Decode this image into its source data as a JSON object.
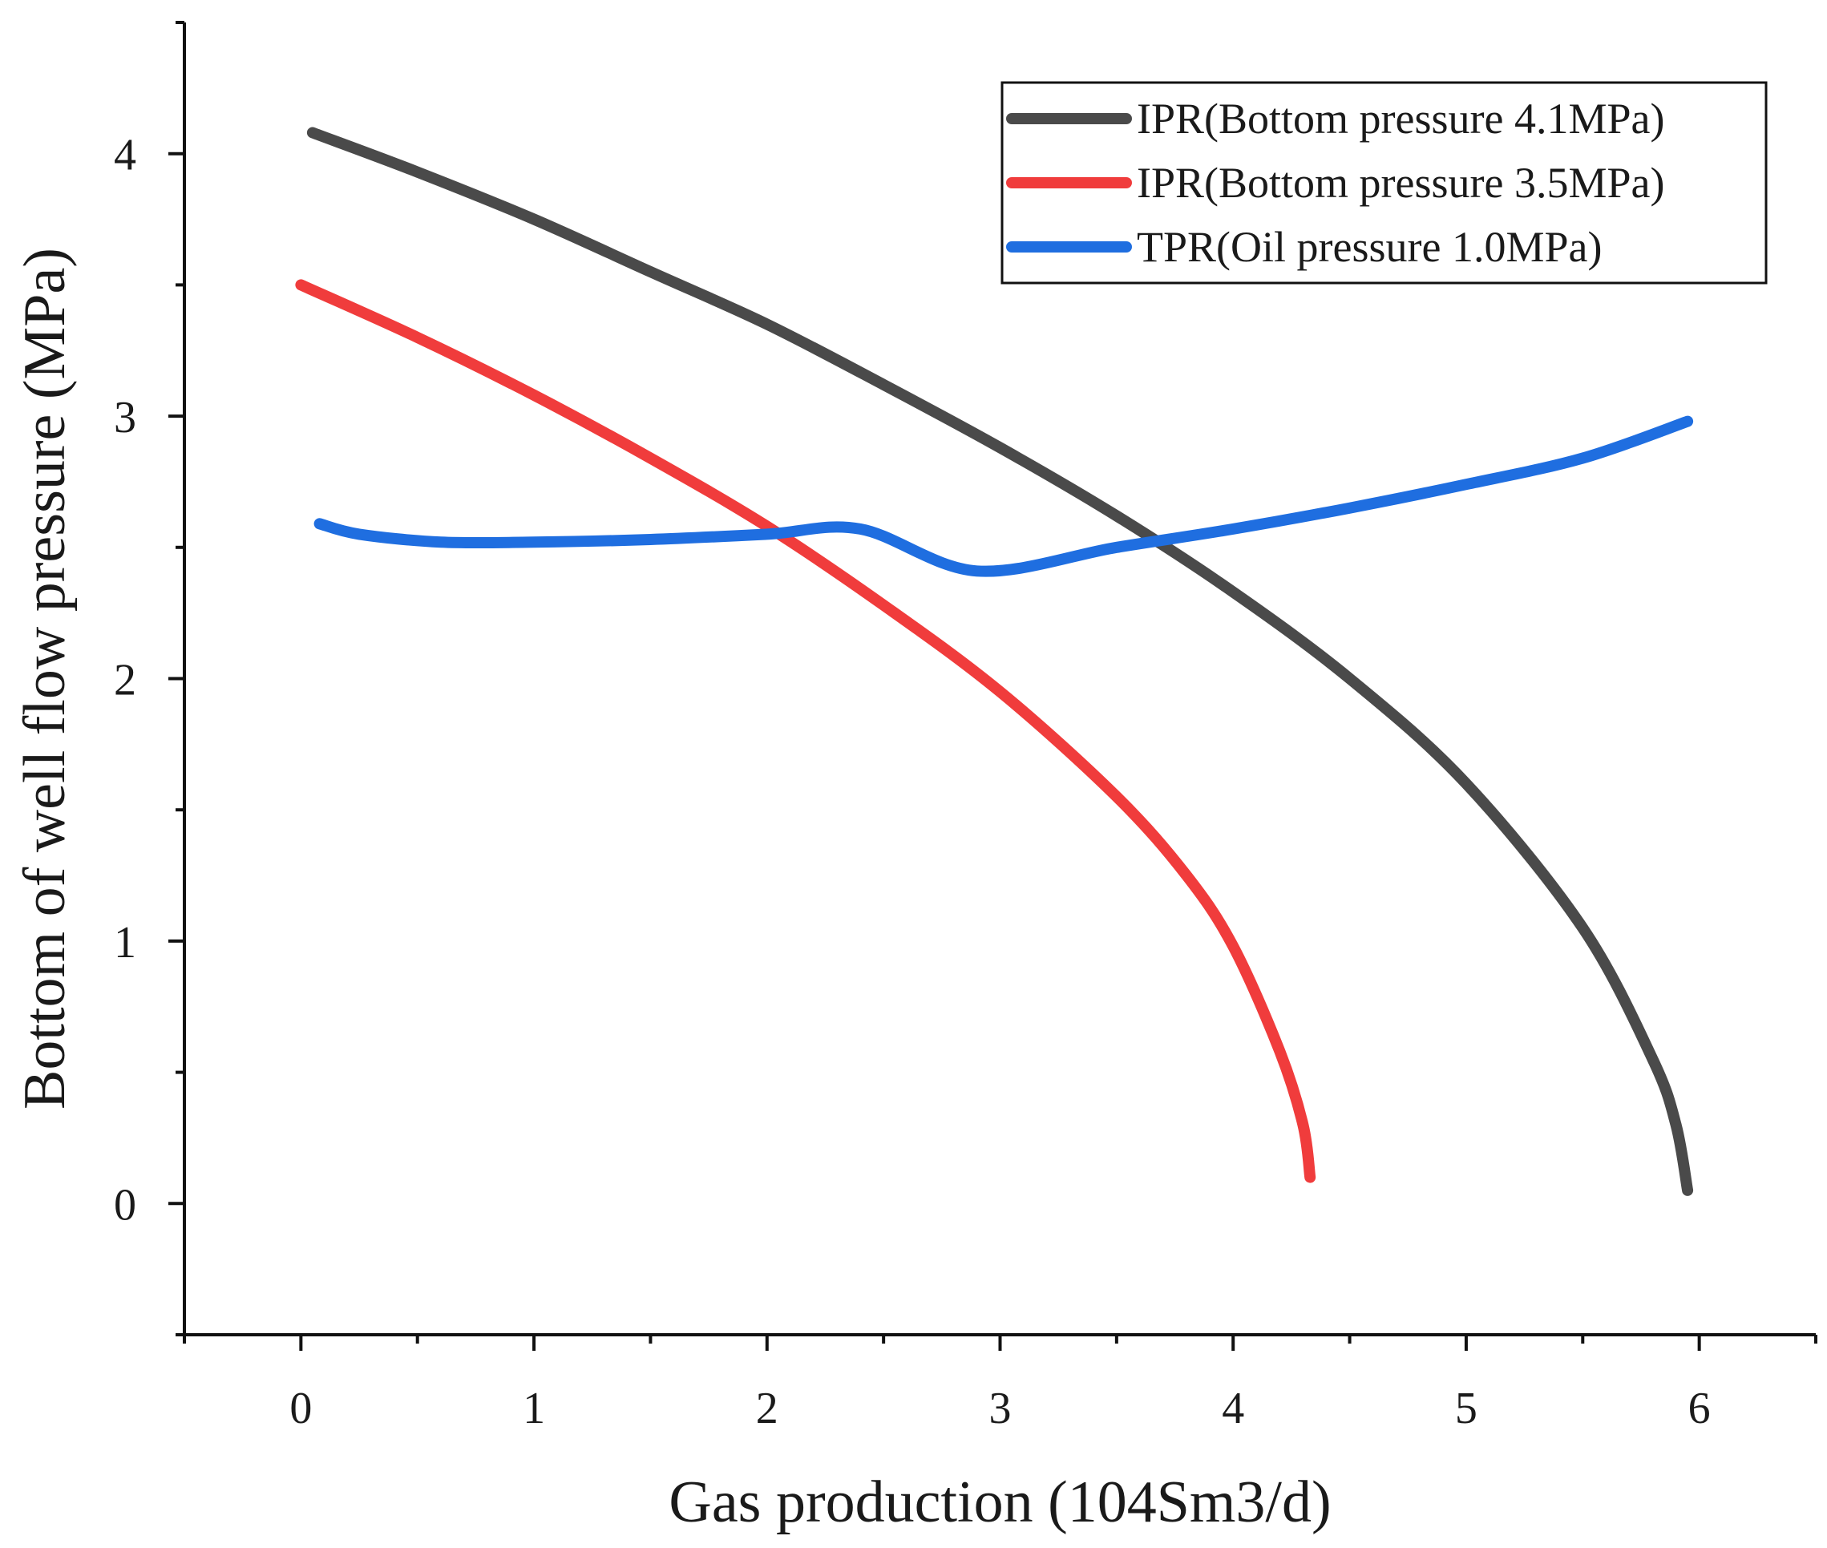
{
  "chart_data": {
    "type": "line",
    "title": "",
    "xlabel": "Gas production (104Sm3/d)",
    "ylabel": "Bottom of well flow pressure (MPa)",
    "xlim": [
      -0.5,
      6.5
    ],
    "ylim": [
      -0.5,
      4.5
    ],
    "xticks": [
      0,
      1,
      2,
      3,
      4,
      5,
      6
    ],
    "yticks": [
      0,
      1,
      2,
      3,
      4
    ],
    "xtick_labels": [
      "0",
      "1",
      "2",
      "3",
      "4",
      "5",
      "6"
    ],
    "ytick_labels": [
      "0",
      "1",
      "2",
      "3",
      "4"
    ],
    "legend_position": "top-right",
    "series": [
      {
        "name": "IPR(Bottom pressure 4.1MPa)",
        "color": "#4a4a4a",
        "x": [
          0.05,
          0.5,
          1.0,
          1.5,
          2.0,
          2.5,
          3.0,
          3.5,
          4.0,
          4.5,
          5.0,
          5.5,
          5.8,
          5.9,
          5.95
        ],
        "y": [
          4.08,
          3.93,
          3.75,
          3.55,
          3.35,
          3.12,
          2.88,
          2.62,
          2.33,
          2.0,
          1.6,
          1.05,
          0.55,
          0.3,
          0.05
        ]
      },
      {
        "name": "IPR(Bottom pressure 3.5MPa)",
        "color": "#f03c3c",
        "x": [
          0.0,
          0.5,
          1.0,
          1.5,
          2.0,
          2.5,
          3.0,
          3.5,
          3.8,
          4.0,
          4.2,
          4.3,
          4.33
        ],
        "y": [
          3.5,
          3.3,
          3.08,
          2.84,
          2.58,
          2.28,
          1.95,
          1.55,
          1.25,
          0.98,
          0.58,
          0.3,
          0.1
        ]
      },
      {
        "name": "TPR(Oil pressure 1.0MPa)",
        "color": "#1f6ee0",
        "x": [
          0.08,
          0.25,
          0.6,
          1.0,
          1.5,
          2.0,
          2.4,
          2.9,
          3.5,
          4.0,
          4.5,
          5.0,
          5.5,
          5.95
        ],
        "y": [
          2.59,
          2.55,
          2.52,
          2.52,
          2.53,
          2.55,
          2.57,
          2.41,
          2.5,
          2.57,
          2.65,
          2.74,
          2.84,
          2.98
        ]
      }
    ]
  }
}
